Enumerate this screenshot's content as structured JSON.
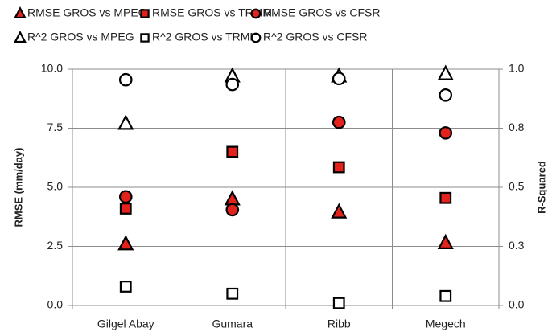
{
  "chart_data": {
    "type": "scatter",
    "categories": [
      "Gilgel Abay",
      "Gumara",
      "Ribb",
      "Megech"
    ],
    "y_label": "RMSE (mm/day)",
    "y2_label": "R-Squared",
    "ylim": [
      0,
      10
    ],
    "yticks": [
      {
        "value": 0,
        "label": "0.0"
      },
      2.5,
      {
        "value": 5,
        "label": "5.0"
      },
      7.5,
      {
        "value": 10,
        "label": "10.0"
      }
    ],
    "y2lim": [
      0,
      1
    ],
    "y2ticks": [
      {
        "value": 0,
        "label": "0.0"
      },
      {
        "value": 0.25,
        "label": "0.3"
      },
      {
        "value": 0.5,
        "label": "0.5"
      },
      {
        "value": 0.75,
        "label": "0.8"
      },
      {
        "value": 1,
        "label": "1.0"
      }
    ],
    "grid": true,
    "series": [
      {
        "name": "RMSE GROS vs MPEG",
        "marker": "triangle",
        "color": "#e3221c",
        "values": [
          2.6,
          4.5,
          3.95,
          2.65
        ]
      },
      {
        "name": "RMSE GROS vs TRMM",
        "marker": "square",
        "color": "#e3221c",
        "values": [
          4.1,
          6.5,
          5.85,
          4.55
        ]
      },
      {
        "name": "RMSE GROS vs CFSR",
        "marker": "circle",
        "color": "#e3221c",
        "values": [
          4.6,
          4.05,
          7.75,
          7.3
        ]
      },
      {
        "name": "R^2 GROS vs MPEG",
        "marker": "triangle",
        "color": "#ffffff",
        "axis": "y2",
        "values": [
          0.77,
          0.97,
          0.97,
          0.98
        ]
      },
      {
        "name": "R^2 GROS vs TRMM",
        "marker": "square",
        "color": "#ffffff",
        "axis": "y2",
        "values": [
          0.08,
          0.05,
          0.01,
          0.04
        ]
      },
      {
        "name": "R^2 GROS vs CFSR",
        "marker": "circle",
        "color": "#ffffff",
        "axis": "y2",
        "values": [
          0.955,
          0.935,
          0.96,
          0.89
        ]
      }
    ]
  }
}
